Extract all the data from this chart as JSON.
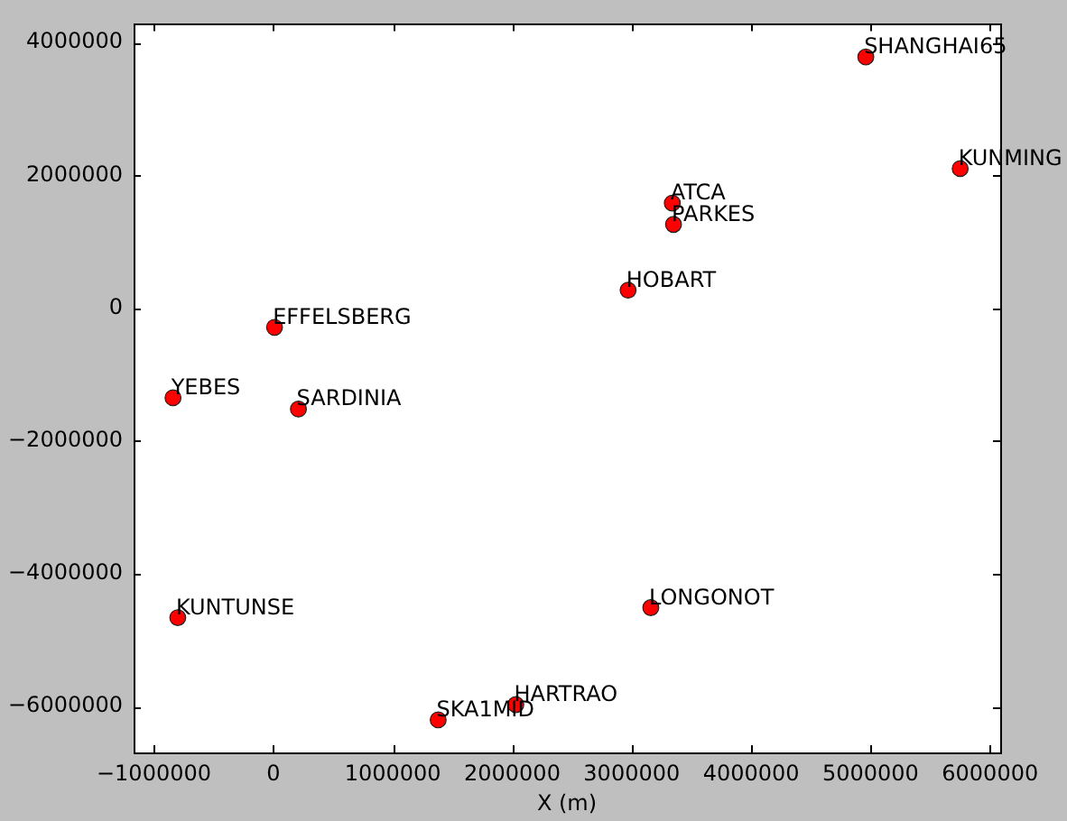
{
  "chart_data": {
    "type": "scatter",
    "xlabel": "X (m)",
    "marker": "circle",
    "color": "#ff0000",
    "x": [
      4960000,
      5750000,
      3340000,
      3350000,
      2970000,
      10000,
      -840000,
      210000,
      -800000,
      1380000,
      2030000,
      3160000
    ],
    "values": [
      3780000,
      2100000,
      1580000,
      1260000,
      270000,
      -290000,
      -1350000,
      -1520000,
      -4660000,
      -6200000,
      -5970000,
      -4510000
    ],
    "xlim": [
      -1170000,
      6085000
    ],
    "ylim": [
      -6690000,
      4280000
    ],
    "xticks": [
      {
        "value": -1000000,
        "label": "−1000000"
      },
      0,
      1000000,
      2000000,
      3000000,
      4000000,
      5000000,
      6000000
    ],
    "yticks": [
      {
        "value": -6000000,
        "label": "−6000000"
      },
      {
        "value": -4000000,
        "label": "−4000000"
      },
      {
        "value": -2000000,
        "label": "−2000000"
      },
      0,
      2000000,
      4000000
    ],
    "annotations": [
      {
        "text": "SHANGHAI65",
        "x": 4960000,
        "y": 3780000
      },
      {
        "text": "KUNMING",
        "x": 5750000,
        "y": 2100000
      },
      {
        "text": "ATCA",
        "x": 3340000,
        "y": 1580000
      },
      {
        "text": "PARKES",
        "x": 3350000,
        "y": 1260000
      },
      {
        "text": "HOBART",
        "x": 2970000,
        "y": 270000
      },
      {
        "text": "EFFELSBERG",
        "x": 10000,
        "y": -290000
      },
      {
        "text": "YEBES",
        "x": -840000,
        "y": -1350000
      },
      {
        "text": "SARDINIA",
        "x": 210000,
        "y": -1520000
      },
      {
        "text": "KUNTUNSE",
        "x": -800000,
        "y": -4660000
      },
      {
        "text": "SKA1MID",
        "x": 1380000,
        "y": -6200000
      },
      {
        "text": "HARTRAO",
        "x": 2030000,
        "y": -5970000
      },
      {
        "text": "LONGONOT",
        "x": 3160000,
        "y": -4510000
      }
    ]
  }
}
